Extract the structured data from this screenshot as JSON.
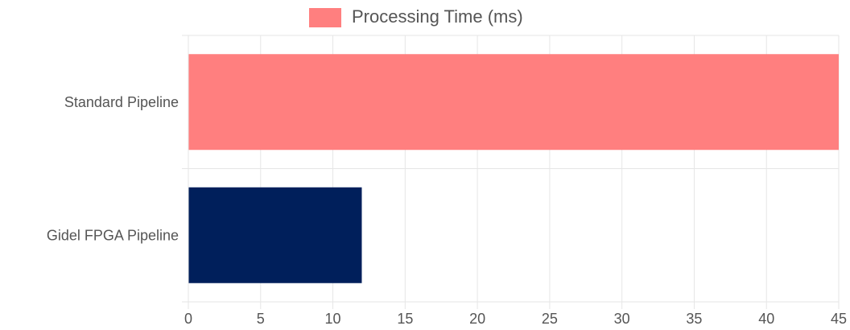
{
  "chart_data": {
    "type": "bar",
    "orientation": "horizontal",
    "categories": [
      "Standard Pipeline",
      "Gidel FPGA Pipeline"
    ],
    "series": [
      {
        "name": "Processing Time (ms)",
        "values": [
          45,
          12
        ],
        "colors": [
          "#ff7f7f",
          "#001f5b"
        ]
      }
    ],
    "xlim": [
      0,
      45
    ],
    "x_ticks": [
      0,
      5,
      10,
      15,
      20,
      25,
      30,
      35,
      40,
      45
    ],
    "grid": true,
    "legend_position": "top-center",
    "legend_swatch_color": "#ff7f7f",
    "grid_color": "#e6e6e6",
    "text_color": "#555555"
  }
}
